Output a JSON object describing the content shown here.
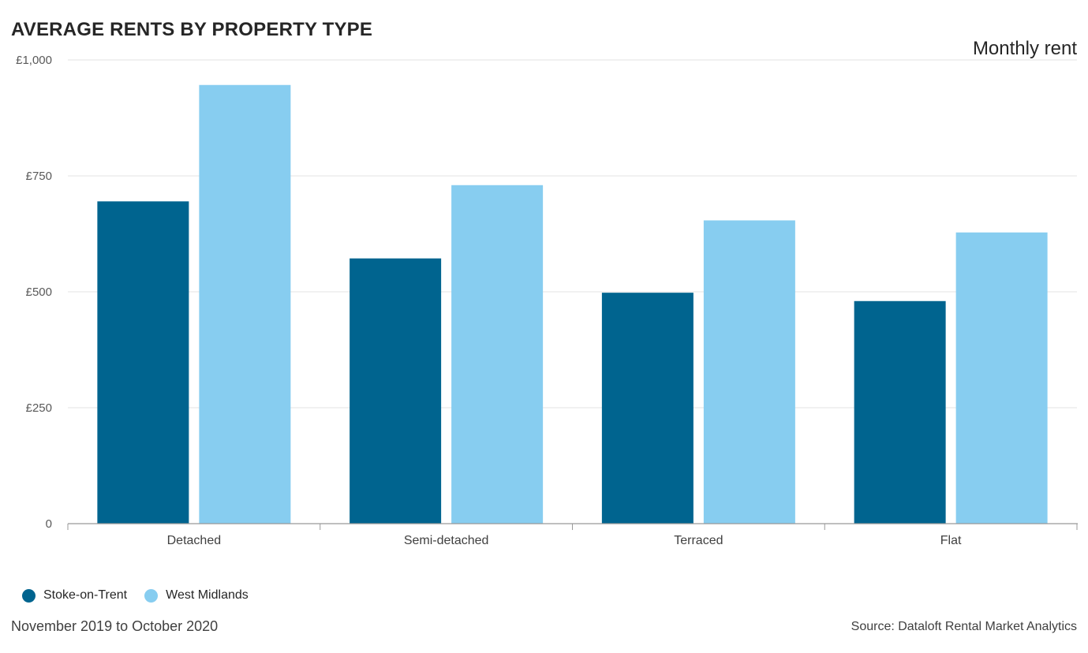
{
  "header": {
    "title": "AVERAGE RENTS BY PROPERTY TYPE",
    "subtitle": "Monthly rent"
  },
  "footer": {
    "period": "November 2019 to October 2020",
    "source": "Source: Dataloft Rental Market Analytics"
  },
  "chart_data": {
    "type": "bar",
    "title": "AVERAGE RENTS BY PROPERTY TYPE",
    "subtitle": "Monthly rent",
    "categories": [
      "Detached",
      "Semi-detached",
      "Terraced",
      "Flat"
    ],
    "series": [
      {
        "name": "Stoke-on-Trent",
        "values": [
          695,
          572,
          498,
          480
        ],
        "color": "#00648f"
      },
      {
        "name": "West Midlands",
        "values": [
          946,
          730,
          654,
          628
        ],
        "color": "#87cdf0"
      }
    ],
    "ylim": [
      0,
      1000
    ],
    "yticks": [
      0,
      250,
      500,
      750,
      1000
    ],
    "ytick_labels": [
      "0",
      "£250",
      "£500",
      "£750",
      "£1,000"
    ],
    "grid": true,
    "legend_position": "bottom-left"
  }
}
